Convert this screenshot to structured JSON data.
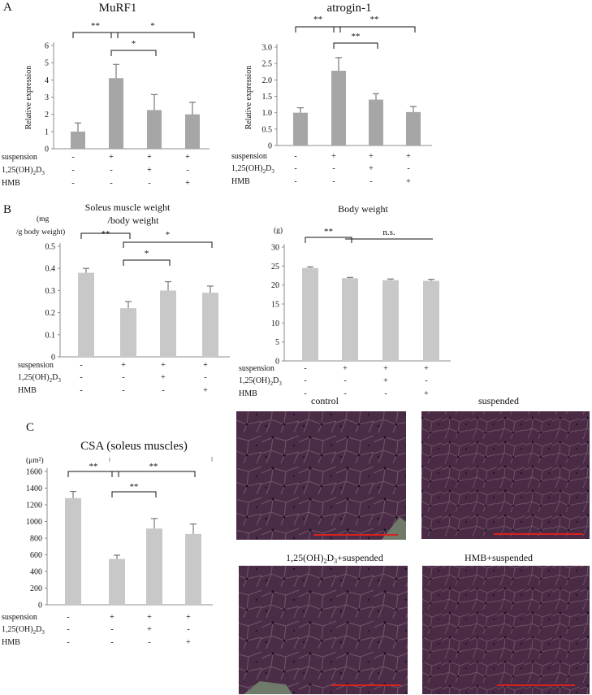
{
  "panel_labels": [
    "A",
    "B",
    "C"
  ],
  "colors": {
    "bar_dark": "#a6a6a6",
    "bar_light": "#c8c8c8",
    "axis": "#8c8c8c",
    "bracket": "#111111",
    "histology_base": "#4a2a44",
    "scale_bar": "#d9221c"
  },
  "row_labels": {
    "suspension": "suspension",
    "vitd_prefix": "1,25(OH)",
    "vitd_sub1": "2",
    "vitd_mid": "D",
    "vitd_sub2": "3",
    "hmb": "HMB"
  },
  "chart_data": [
    {
      "id": "murf1",
      "type": "bar",
      "title": "MuRF1",
      "subtitle": "",
      "xlabel": "",
      "ylabel": "Relative expression",
      "unit_label": "",
      "categories": [
        "control",
        "suspension",
        "1,25(OH)2D3+suspension",
        "HMB+suspension"
      ],
      "values": [
        1.0,
        4.1,
        2.25,
        2.0
      ],
      "errors": [
        0.5,
        0.8,
        0.9,
        0.7
      ],
      "ylim": [
        0,
        6
      ],
      "yticks": [
        0,
        1,
        2,
        3,
        4,
        5,
        6
      ],
      "grid": false,
      "treatment_rows": [
        [
          "-",
          "+",
          "+",
          "+"
        ],
        [
          "-",
          "-",
          "+",
          "-"
        ],
        [
          "-",
          "-",
          "-",
          "+"
        ]
      ],
      "significance": [
        {
          "from": 0,
          "to": 1,
          "label": "**"
        },
        {
          "from": 1,
          "to": 3,
          "label": "*"
        },
        {
          "from": 1,
          "to": 2,
          "label": "*"
        }
      ]
    },
    {
      "id": "atrogin",
      "type": "bar",
      "title": "atrogin-1",
      "subtitle": "",
      "xlabel": "",
      "ylabel": "Relative expression",
      "unit_label": "",
      "categories": [
        "control",
        "suspension",
        "1,25(OH)2D3+suspension",
        "HMB+suspension"
      ],
      "values": [
        1.0,
        2.28,
        1.4,
        1.02
      ],
      "errors": [
        0.15,
        0.4,
        0.18,
        0.17
      ],
      "ylim": [
        0,
        3
      ],
      "yticks": [
        0,
        0.5,
        1,
        1.5,
        2,
        2.5,
        3
      ],
      "grid": false,
      "treatment_rows": [
        [
          "-",
          "+",
          "+",
          "+"
        ],
        [
          "-",
          "-",
          "+",
          "-"
        ],
        [
          "-",
          "-",
          "-",
          "+"
        ]
      ],
      "significance": [
        {
          "from": 0,
          "to": 1,
          "label": "**"
        },
        {
          "from": 1,
          "to": 3,
          "label": "**"
        },
        {
          "from": 1,
          "to": 2,
          "label": "**"
        }
      ]
    },
    {
      "id": "soleus",
      "type": "bar",
      "title": "Soleus muscle weight",
      "subtitle": "/body weight",
      "xlabel": "",
      "ylabel": "",
      "unit_label": "(mg\n/g body weight)",
      "categories": [
        "control",
        "suspension",
        "1,25(OH)2D3+suspension",
        "HMB+suspension"
      ],
      "values": [
        0.38,
        0.22,
        0.3,
        0.29
      ],
      "errors": [
        0.02,
        0.03,
        0.04,
        0.03
      ],
      "ylim": [
        0,
        0.5
      ],
      "yticks": [
        0,
        0.1,
        0.2,
        0.3,
        0.4,
        0.5
      ],
      "grid": false,
      "treatment_rows": [
        [
          "-",
          "+",
          "+",
          "+"
        ],
        [
          "-",
          "-",
          "+",
          "-"
        ],
        [
          "-",
          "-",
          "-",
          "+"
        ]
      ],
      "significance": [
        {
          "from": 0,
          "to": 1,
          "label": "**"
        },
        {
          "from": 1,
          "to": 3,
          "label": "*"
        },
        {
          "from": 1,
          "to": 2,
          "label": "*"
        }
      ]
    },
    {
      "id": "bodyweight",
      "type": "bar",
      "title": "Body weight",
      "subtitle": "",
      "xlabel": "",
      "ylabel": "",
      "unit_label": "(g)",
      "categories": [
        "control",
        "suspension",
        "1,25(OH)2D3+suspension",
        "HMB+suspension"
      ],
      "values": [
        24.5,
        21.8,
        21.3,
        21.1
      ],
      "errors": [
        0.3,
        0.2,
        0.3,
        0.4
      ],
      "ylim": [
        0,
        30
      ],
      "yticks": [
        0,
        5,
        10,
        15,
        20,
        25,
        30
      ],
      "grid": false,
      "treatment_rows": [
        [
          "-",
          "+",
          "+",
          "+"
        ],
        [
          "-",
          "-",
          "+",
          "-"
        ],
        [
          "-",
          "-",
          "-",
          "+"
        ]
      ],
      "significance": [
        {
          "from": 0,
          "to": 1,
          "label": "**"
        },
        {
          "from": 1,
          "to": 3,
          "label": "n.s."
        }
      ]
    },
    {
      "id": "csa",
      "type": "bar",
      "title": "CSA (soleus muscles)",
      "subtitle": "",
      "xlabel": "",
      "ylabel": "",
      "unit_label": "(μm²)",
      "categories": [
        "control",
        "suspension",
        "1,25(OH)2D3+suspension",
        "HMB+suspension"
      ],
      "values": [
        1280,
        550,
        915,
        850
      ],
      "errors": [
        80,
        45,
        120,
        120
      ],
      "ylim": [
        0,
        1600
      ],
      "yticks": [
        0,
        200,
        400,
        600,
        800,
        1000,
        1200,
        1400,
        1600
      ],
      "grid": false,
      "treatment_rows": [
        [
          "-",
          "+",
          "+",
          "+"
        ],
        [
          "-",
          "-",
          "+",
          "-"
        ],
        [
          "-",
          "-",
          "-",
          "+"
        ]
      ],
      "significance": [
        {
          "from": 0,
          "to": 1,
          "label": "**"
        },
        {
          "from": 1,
          "to": 3,
          "label": "**"
        },
        {
          "from": 1,
          "to": 2,
          "label": "**"
        }
      ]
    }
  ],
  "histology": {
    "titles": [
      "control",
      "suspended",
      "1,25(OH)2D3+suspended",
      "HMB+suspended"
    ],
    "title_parts": {
      "vitd_prefix": "1,25(OH)",
      "vitd_sub1": "2",
      "vitd_mid": "D",
      "vitd_sub2": "3",
      "vitd_suffix": "+suspended"
    }
  }
}
